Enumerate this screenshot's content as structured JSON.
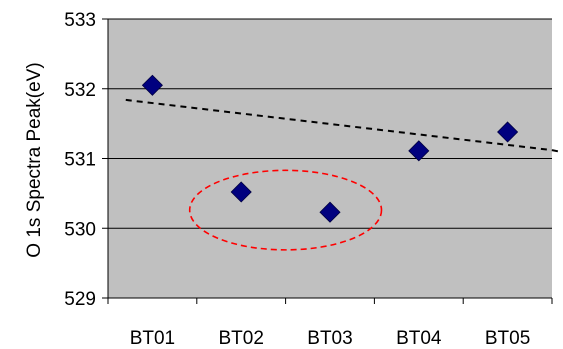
{
  "chart_data": {
    "type": "scatter",
    "title": "",
    "xlabel": "",
    "ylabel": "O 1s Spectra Peak(eV)",
    "categories": [
      "BT01",
      "BT02",
      "BT03",
      "BT04",
      "BT05"
    ],
    "series": [
      {
        "values": [
          532.05,
          530.52,
          530.23,
          531.11,
          531.38
        ],
        "marker": "diamond",
        "color": "#00007f"
      }
    ],
    "ylim": [
      529,
      533
    ],
    "yticks": [
      529,
      530,
      531,
      532,
      533
    ],
    "grid": "horizontal",
    "legend": "none",
    "plot_background": "#c0c0c0",
    "trendline": {
      "style": "dashed",
      "color": "#000000",
      "from": {
        "x": 0.2,
        "y": 531.84
      },
      "to": {
        "x": 5.0,
        "y": 531.12
      }
    },
    "annotations": [
      {
        "type": "ellipse",
        "style": "dashed",
        "color": "#ff0000",
        "encloses": [
          "BT02",
          "BT03"
        ],
        "center": {
          "x": 2.0,
          "y": 530.26
        },
        "rx": 1.08,
        "ry": 0.57
      }
    ]
  }
}
